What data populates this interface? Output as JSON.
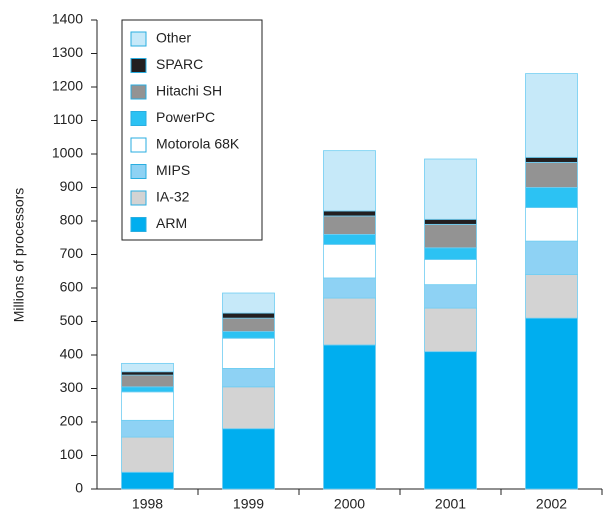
{
  "chart_data": {
    "type": "stacked_bar",
    "ylabel": "Millions of processors",
    "categories": [
      "1998",
      "1999",
      "2000",
      "2001",
      "2002"
    ],
    "series": [
      {
        "name": "ARM",
        "color": "#00aeef",
        "values": [
          50,
          180,
          430,
          410,
          510
        ]
      },
      {
        "name": "IA-32",
        "color": "#d3d3d3",
        "values": [
          105,
          125,
          140,
          130,
          130
        ]
      },
      {
        "name": "MIPS",
        "color": "#8ed2f4",
        "values": [
          50,
          55,
          60,
          70,
          100
        ]
      },
      {
        "name": "Motorola 68K",
        "color": "#ffffff",
        "values": [
          85,
          90,
          100,
          75,
          100
        ]
      },
      {
        "name": "PowerPC",
        "color": "#2cc2f3",
        "values": [
          15,
          20,
          30,
          35,
          60
        ]
      },
      {
        "name": "Hitachi SH",
        "color": "#939393",
        "values": [
          35,
          40,
          55,
          70,
          75
        ]
      },
      {
        "name": "SPARC",
        "color": "#231f20",
        "values": [
          10,
          15,
          15,
          15,
          15
        ]
      },
      {
        "name": "Other",
        "color": "#c6e9f9",
        "values": [
          25,
          60,
          180,
          180,
          250
        ]
      }
    ],
    "ylim": [
      0,
      1400
    ],
    "yticks": [
      0,
      100,
      200,
      300,
      400,
      500,
      600,
      700,
      800,
      900,
      1000,
      1100,
      1200,
      1300,
      1400
    ],
    "grid": false
  }
}
